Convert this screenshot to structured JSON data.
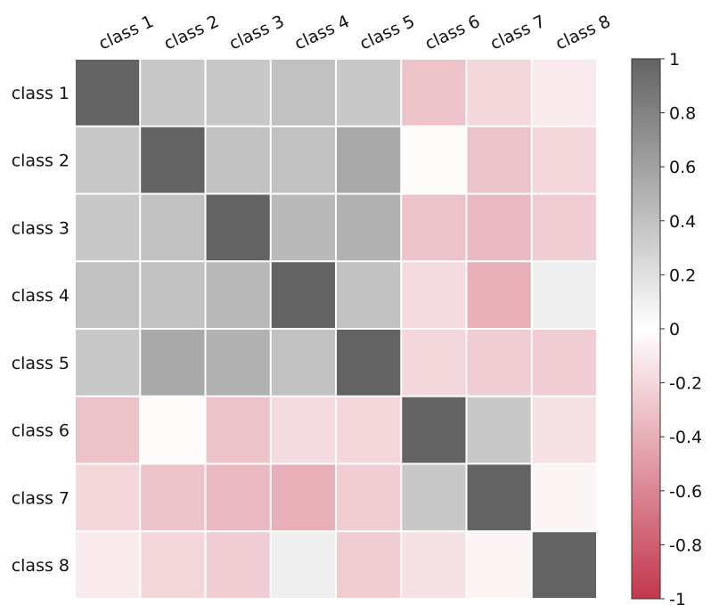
{
  "chart_data": {
    "type": "heatmap",
    "categories": [
      "class 1",
      "class 2",
      "class 3",
      "class 4",
      "class 5",
      "class 6",
      "class 7",
      "class 8"
    ],
    "values": [
      [
        1,
        0.35,
        0.35,
        0.4,
        0.35,
        -0.3,
        -0.2,
        -0.1
      ],
      [
        0.35,
        1,
        0.4,
        0.4,
        0.55,
        -0.02,
        -0.3,
        -0.2
      ],
      [
        0.35,
        0.4,
        1,
        0.45,
        0.5,
        -0.3,
        -0.35,
        -0.25
      ],
      [
        0.4,
        0.4,
        0.45,
        1,
        0.4,
        -0.18,
        -0.4,
        0.1
      ],
      [
        0.35,
        0.55,
        0.5,
        0.4,
        1,
        -0.2,
        -0.25,
        -0.25
      ],
      [
        -0.3,
        -0.02,
        -0.3,
        -0.18,
        -0.2,
        1,
        0.35,
        -0.15
      ],
      [
        -0.2,
        -0.3,
        -0.35,
        -0.4,
        -0.25,
        0.35,
        1,
        -0.05
      ],
      [
        -0.1,
        -0.2,
        -0.25,
        0.1,
        -0.25,
        -0.15,
        -0.05,
        1
      ]
    ],
    "colormap": [
      "#c3364d",
      "#ffffff",
      "#636363"
    ],
    "clim": [
      -1,
      1
    ],
    "cticks": [
      -1,
      -0.8,
      -0.6,
      -0.4,
      -0.2,
      0,
      0.2,
      0.4,
      0.6,
      0.8,
      1
    ]
  }
}
